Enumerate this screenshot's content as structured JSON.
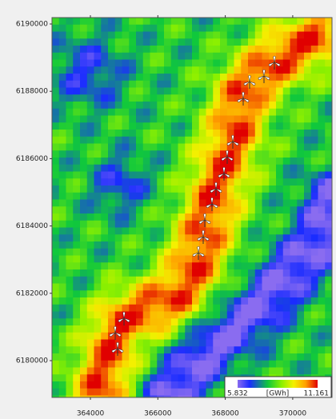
{
  "y_axis": {
    "ticks": [
      "6190000",
      "6188000",
      "6186000",
      "6184000",
      "6182000",
      "6180000"
    ]
  },
  "x_axis": {
    "ticks": [
      "364000",
      "366000",
      "368000",
      "370000"
    ]
  },
  "legend": {
    "min": "5.832",
    "unit": "[GWh]",
    "max": "11.161"
  }
}
